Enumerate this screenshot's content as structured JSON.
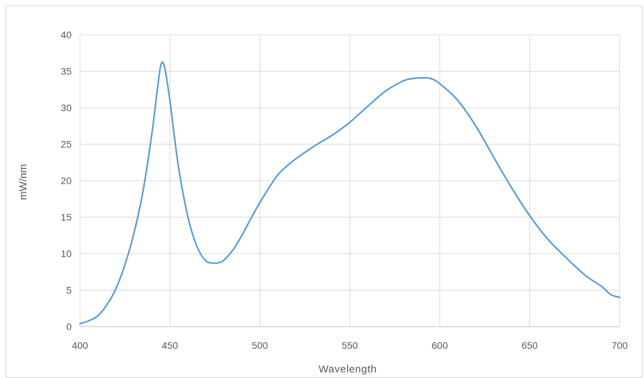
{
  "chart_data": {
    "type": "line",
    "title": "",
    "xlabel": "Wavelength",
    "ylabel": "mW/nm",
    "xlim": [
      400,
      700
    ],
    "ylim": [
      0,
      40
    ],
    "xticks": [
      400,
      450,
      500,
      550,
      600,
      650,
      700
    ],
    "yticks": [
      0,
      5,
      10,
      15,
      20,
      25,
      30,
      35,
      40
    ],
    "grid": true,
    "legend": "none",
    "series": [
      {
        "color": "#5b9bd5",
        "x": [
          400,
          405,
          410,
          415,
          420,
          425,
          430,
          435,
          440,
          443,
          445,
          447,
          450,
          452,
          455,
          460,
          465,
          470,
          475,
          478,
          480,
          485,
          490,
          495,
          500,
          505,
          510,
          515,
          520,
          530,
          540,
          550,
          560,
          570,
          580,
          585,
          590,
          595,
          600,
          610,
          620,
          630,
          640,
          650,
          660,
          670,
          680,
          685,
          690,
          695,
          700
        ],
        "values": [
          0.4,
          0.8,
          1.5,
          3.0,
          5.2,
          8.5,
          12.8,
          18.5,
          26.5,
          32.5,
          35.9,
          35.6,
          31.0,
          27.0,
          21.5,
          15.0,
          11.0,
          9.0,
          8.7,
          8.8,
          9.1,
          10.5,
          12.5,
          14.8,
          17.0,
          19.0,
          20.8,
          22.0,
          23.0,
          24.7,
          26.2,
          28.0,
          30.2,
          32.3,
          33.7,
          34.0,
          34.1,
          34.0,
          33.3,
          31.0,
          27.5,
          23.2,
          19.0,
          15.2,
          12.0,
          9.5,
          7.2,
          6.3,
          5.5,
          4.4,
          4.0
        ]
      }
    ]
  }
}
